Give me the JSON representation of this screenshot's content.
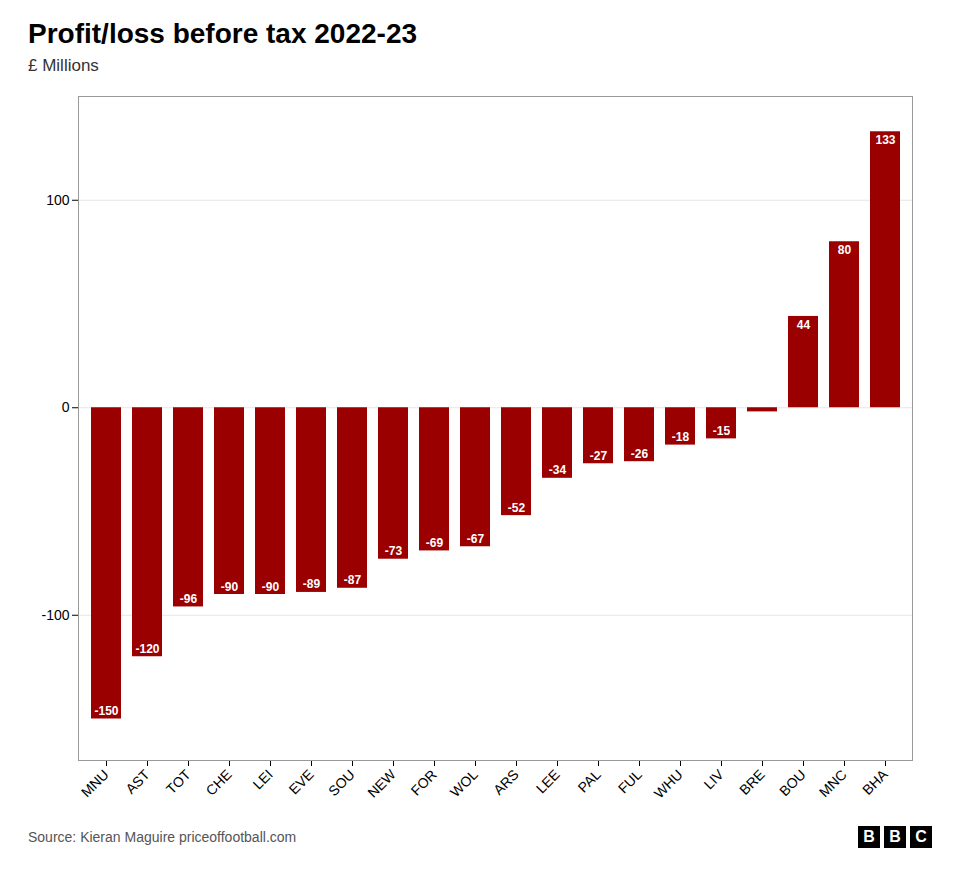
{
  "chart_data": {
    "type": "bar",
    "title": "Profit/loss before tax 2022-23",
    "subtitle": "£ Millions",
    "source": "Source: Kieran Maguire priceoffootball.com",
    "logo": [
      "B",
      "B",
      "C"
    ],
    "categories": [
      "MNU",
      "AST",
      "TOT",
      "CHE",
      "LEI",
      "EVE",
      "SOU",
      "NEW",
      "FOR",
      "WOL",
      "ARS",
      "LEE",
      "PAL",
      "FUL",
      "WHU",
      "LIV",
      "BRE",
      "BOU",
      "MNC",
      "BHA"
    ],
    "values": [
      -150,
      -120,
      -96,
      -90,
      -90,
      -89,
      -87,
      -73,
      -69,
      -67,
      -52,
      -34,
      -27,
      -26,
      -18,
      -15,
      -2,
      44,
      80,
      133
    ],
    "value_labels": [
      "-150",
      "-120",
      "-96",
      "-90",
      "-90",
      "-89",
      "-87",
      "-73",
      "-69",
      "-67",
      "-52",
      "-34",
      "-27",
      "-26",
      "-18",
      "-15",
      null,
      "44",
      "80",
      "133"
    ],
    "data_labels": true,
    "color": "#9b0000",
    "ylim": [
      -170,
      150
    ],
    "yticks": [
      -100,
      0,
      100
    ],
    "grid": true
  }
}
